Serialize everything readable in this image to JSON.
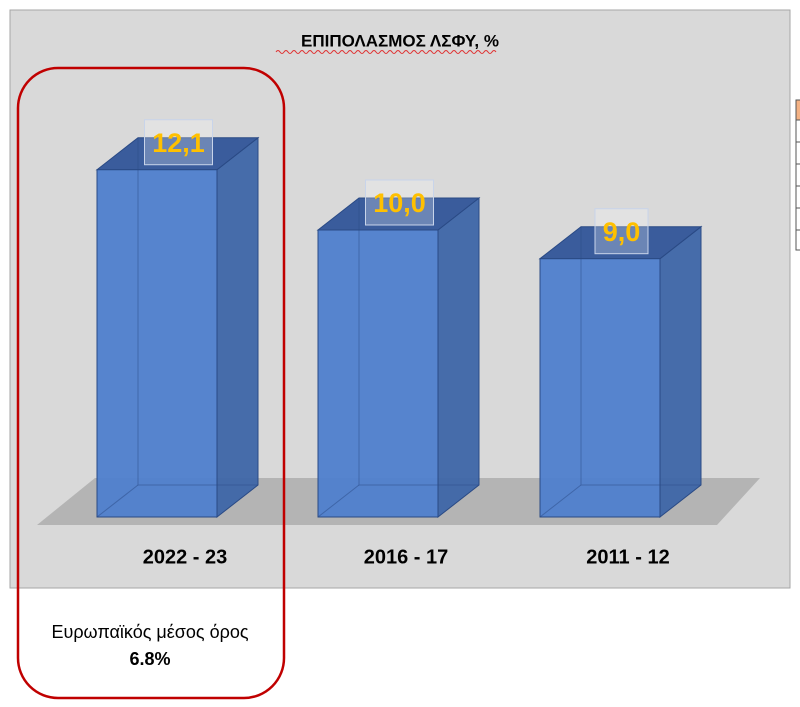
{
  "chart_data": {
    "type": "bar3d",
    "title": "ΕΠΙΠΟΛΑΣΜΟΣ ΛΣΦΥ, %",
    "categories": [
      "2022 - 23",
      "2016 - 17",
      "2011 - 12"
    ],
    "values": [
      12.1,
      10.0,
      9.0
    ],
    "value_labels": [
      "12,1",
      "10,0",
      "9,0"
    ],
    "color": "#4f7fcd",
    "label_color": "#ffc000",
    "annotations": [
      "Ευρωπαϊκός μέσος όρος",
      "6.8%"
    ]
  }
}
